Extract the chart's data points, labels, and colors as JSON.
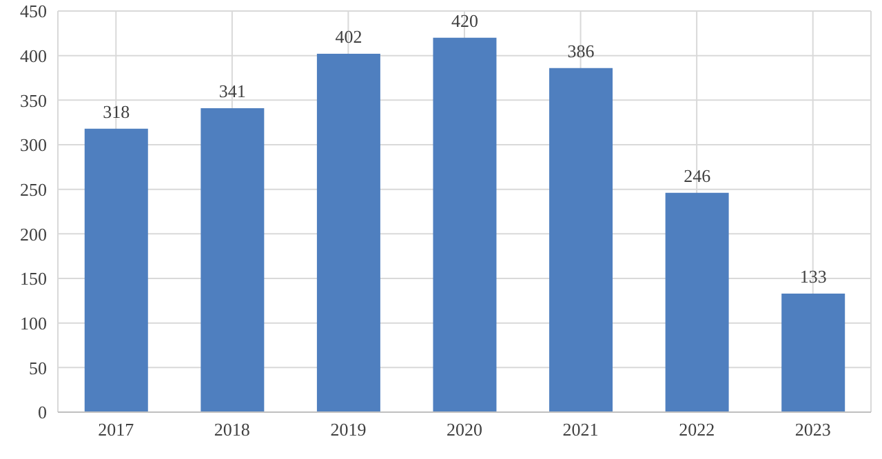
{
  "chart_data": {
    "type": "bar",
    "categories": [
      "2017",
      "2018",
      "2019",
      "2020",
      "2021",
      "2022",
      "2023"
    ],
    "values": [
      318,
      341,
      402,
      420,
      386,
      246,
      133
    ],
    "color": "#4f7fbf",
    "ylim": [
      0,
      450
    ],
    "yticks": [
      0,
      50,
      100,
      150,
      200,
      250,
      300,
      350,
      400,
      450
    ],
    "grid": true,
    "data_labels": true
  }
}
